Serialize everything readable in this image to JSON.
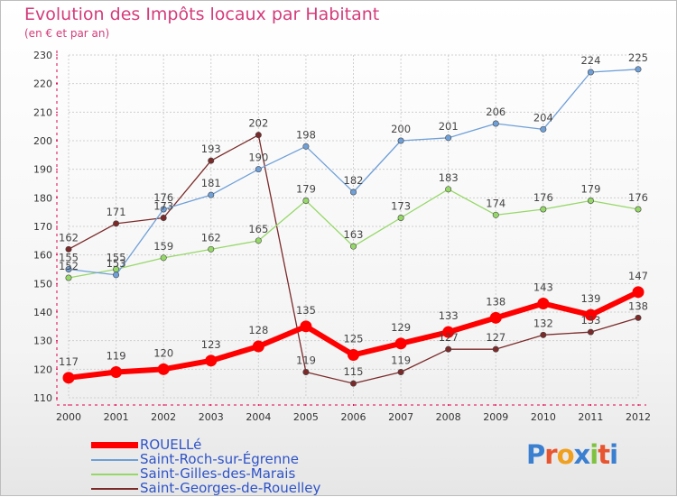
{
  "header": {
    "title": "Evolution des Impôts locaux par Habitant",
    "subtitle": "(en € et par an)"
  },
  "logo": {
    "text": "Proxiti",
    "letter_colors": [
      "#3b7fd1",
      "#e8542f",
      "#f0a020",
      "#3b7fd1",
      "#7fc241",
      "#e8542f",
      "#3b7fd1"
    ]
  },
  "chart_data": {
    "type": "line",
    "x": [
      "2000",
      "2001",
      "2002",
      "2003",
      "2004",
      "2005",
      "2006",
      "2007",
      "2008",
      "2009",
      "2010",
      "2011",
      "2012"
    ],
    "y_ticks": [
      110,
      120,
      130,
      140,
      150,
      160,
      170,
      180,
      190,
      200,
      210,
      220,
      230
    ],
    "ylim": [
      110,
      230
    ],
    "grid": true,
    "legend_position": "bottom-left",
    "series": [
      {
        "name": "ROUELLé",
        "color": "#ff0000",
        "values": [
          117,
          119,
          120,
          123,
          128,
          135,
          125,
          129,
          133,
          138,
          143,
          139,
          147
        ]
      },
      {
        "name": "Saint-Roch-sur-Égrenne",
        "color": "#6fa0d8",
        "values": [
          155,
          153,
          176,
          181,
          190,
          198,
          182,
          200,
          201,
          206,
          204,
          224,
          225
        ]
      },
      {
        "name": "Saint-Gilles-des-Marais",
        "color": "#96d868",
        "values": [
          152,
          155,
          159,
          162,
          165,
          179,
          163,
          173,
          183,
          174,
          176,
          179,
          176
        ]
      },
      {
        "name": "Saint-Georges-de-Rouelley",
        "color": "#7b2a2a",
        "values": [
          162,
          171,
          173,
          193,
          202,
          119,
          115,
          119,
          127,
          127,
          132,
          133,
          138
        ]
      }
    ]
  }
}
